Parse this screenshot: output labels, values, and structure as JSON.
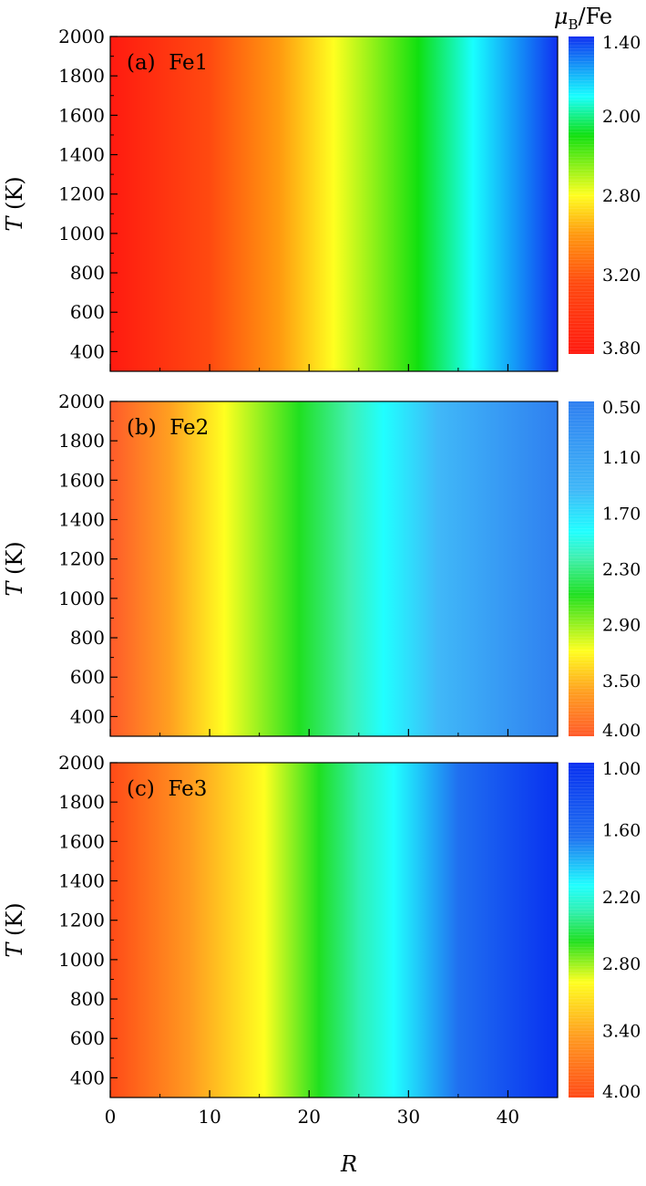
{
  "figure": {
    "colorbar_unit": "μB/Fe",
    "colorbar_unit_main": "μ",
    "colorbar_unit_sub": "B",
    "colorbar_unit_tail": "/Fe"
  },
  "chart_data": [
    {
      "type": "heatmap",
      "panel_label": "(a)  Fe1",
      "xlabel": "R",
      "ylabel": "T (K)",
      "ylabel_italic": "T",
      "ylabel_rest": " (K)",
      "xlim": [
        0,
        45
      ],
      "ylim": [
        300,
        2000
      ],
      "xticks": [
        0,
        10,
        20,
        30,
        40
      ],
      "yticks": [
        400,
        600,
        800,
        1000,
        1200,
        1400,
        1600,
        1800,
        2000
      ],
      "show_xtick_labels": false,
      "colorbar": {
        "ticks": [
          "1.40",
          "2.00",
          "2.80",
          "3.20",
          "3.80"
        ],
        "range": [
          3.8,
          1.4
        ]
      },
      "color_stops": [
        {
          "R": 0,
          "color": "#ff1a10"
        },
        {
          "R": 10,
          "color": "#ff4a10"
        },
        {
          "R": 17,
          "color": "#ff9a10"
        },
        {
          "R": 22.5,
          "color": "#ffff20"
        },
        {
          "R": 31,
          "color": "#10e010"
        },
        {
          "R": 36.5,
          "color": "#18ffff"
        },
        {
          "R": 45,
          "color": "#1030f0"
        }
      ]
    },
    {
      "type": "heatmap",
      "panel_label": "(b)  Fe2",
      "xlabel": "R",
      "ylabel": "T (K)",
      "ylabel_italic": "T",
      "ylabel_rest": " (K)",
      "xlim": [
        0,
        45
      ],
      "ylim": [
        300,
        2000
      ],
      "xticks": [
        0,
        10,
        20,
        30,
        40
      ],
      "yticks": [
        400,
        600,
        800,
        1000,
        1200,
        1400,
        1600,
        1800,
        2000
      ],
      "show_xtick_labels": false,
      "colorbar": {
        "ticks": [
          "0.50",
          "1.10",
          "1.70",
          "2.30",
          "2.90",
          "3.50",
          "4.00"
        ],
        "range": [
          4.0,
          0.5
        ]
      },
      "color_stops": [
        {
          "R": 0,
          "color": "#ff5a2a"
        },
        {
          "R": 6,
          "color": "#ffa020"
        },
        {
          "R": 11.5,
          "color": "#ffff20"
        },
        {
          "R": 19,
          "color": "#20e020"
        },
        {
          "R": 24,
          "color": "#40f0b0"
        },
        {
          "R": 27.5,
          "color": "#20ffff"
        },
        {
          "R": 33,
          "color": "#40b8f8"
        },
        {
          "R": 45,
          "color": "#2f7ff0"
        }
      ]
    },
    {
      "type": "heatmap",
      "panel_label": "(c)  Fe3",
      "xlabel": "R",
      "ylabel": "T (K)",
      "ylabel_italic": "T",
      "ylabel_rest": " (K)",
      "xlim": [
        0,
        45
      ],
      "ylim": [
        300,
        2000
      ],
      "xticks": [
        0,
        10,
        20,
        30,
        40
      ],
      "yticks": [
        400,
        600,
        800,
        1000,
        1200,
        1400,
        1600,
        1800,
        2000
      ],
      "show_xtick_labels": true,
      "colorbar": {
        "ticks": [
          "1.00",
          "1.60",
          "2.20",
          "2.80",
          "3.40",
          "4.00"
        ],
        "range": [
          4.0,
          1.0
        ]
      },
      "color_stops": [
        {
          "R": 0,
          "color": "#ff4a18"
        },
        {
          "R": 8,
          "color": "#ff9a20"
        },
        {
          "R": 15.5,
          "color": "#ffff20"
        },
        {
          "R": 21,
          "color": "#20e020"
        },
        {
          "R": 25,
          "color": "#30f0b0"
        },
        {
          "R": 28.5,
          "color": "#20ffff"
        },
        {
          "R": 35,
          "color": "#2070f0"
        },
        {
          "R": 45,
          "color": "#0830f0"
        }
      ]
    }
  ]
}
